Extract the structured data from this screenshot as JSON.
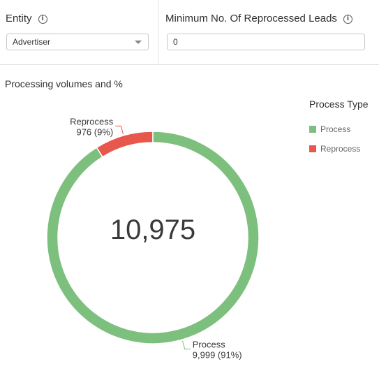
{
  "filters": {
    "entity": {
      "label": "Entity",
      "value": "Advertiser"
    },
    "min_reprocessed": {
      "label": "Minimum No. Of Reprocessed Leads",
      "value": "0"
    }
  },
  "panel": {
    "title": "Processing volumes and %"
  },
  "legend": {
    "title": "Process Type"
  },
  "chart_data": {
    "type": "pie",
    "variant": "donut",
    "center_label": "10,975",
    "legend_title": "Process Type",
    "legend_position": "right",
    "slices": [
      {
        "name": "Process",
        "value": 9999,
        "percent": 91,
        "label_value": "9,999 (91%)",
        "color": "#7dc07e"
      },
      {
        "name": "Reprocess",
        "value": 976,
        "percent": 9,
        "label_value": "976 (9%)",
        "color": "#e8574c"
      }
    ]
  }
}
